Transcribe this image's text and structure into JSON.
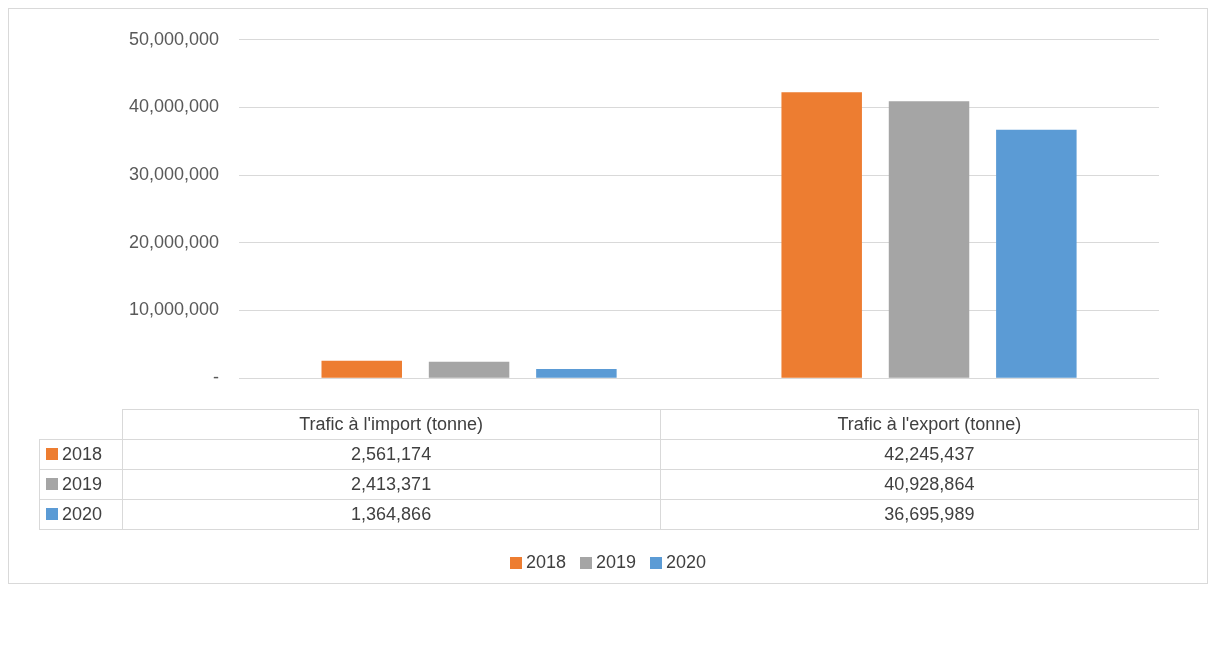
{
  "chart_data": {
    "type": "bar",
    "categories": [
      "Trafic à l'import (tonne)",
      "Trafic à l'export (tonne)"
    ],
    "series": [
      {
        "name": "2018",
        "color": "#ed7d31",
        "values": [
          2561174,
          42245437
        ],
        "value_labels": [
          "2,561,174",
          "42,245,437"
        ]
      },
      {
        "name": "2019",
        "color": "#a5a5a5",
        "values": [
          2413371,
          40928864
        ],
        "value_labels": [
          "2,413,371",
          "40,928,864"
        ]
      },
      {
        "name": "2020",
        "color": "#5b9bd5",
        "values": [
          1364866,
          36695989
        ],
        "value_labels": [
          "1,364,866",
          "36,695,989"
        ]
      }
    ],
    "ylim": [
      0,
      50000000
    ],
    "yticks": [
      {
        "value": 0,
        "label": "-"
      },
      {
        "value": 10000000,
        "label": "10,000,000"
      },
      {
        "value": 20000000,
        "label": "20,000,000"
      },
      {
        "value": 30000000,
        "label": "30,000,000"
      },
      {
        "value": 40000000,
        "label": "40,000,000"
      },
      {
        "value": 50000000,
        "label": "50,000,000"
      }
    ],
    "grid": "y",
    "tick_labels": "y",
    "legend": "bottom"
  }
}
